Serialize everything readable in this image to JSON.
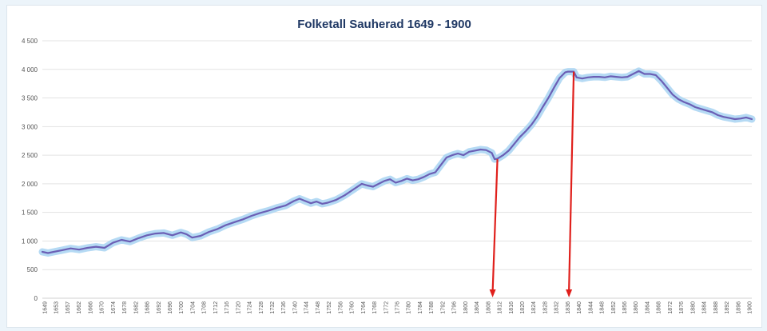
{
  "chart_data": {
    "type": "line",
    "title": "Folketall Sauherad 1649 - 1900",
    "xlabel": "",
    "ylabel": "",
    "xlim": [
      1649,
      1900
    ],
    "ylim": [
      0,
      4500
    ],
    "yticks": [
      0,
      500,
      1000,
      1500,
      2000,
      2500,
      3000,
      3500,
      4000,
      4500
    ],
    "ytick_labels": [
      "0",
      "500",
      "1 000",
      "1 500",
      "2 000",
      "2 500",
      "3 000",
      "3 500",
      "4 000",
      "4 500"
    ],
    "xtick_labels": [
      "1649",
      "1653",
      "1657",
      "1662",
      "1666",
      "1670",
      "1674",
      "1678",
      "1682",
      "1686",
      "1692",
      "1696",
      "1700",
      "1704",
      "1708",
      "1712",
      "1716",
      "1720",
      "1724",
      "1728",
      "1732",
      "1736",
      "1740",
      "1744",
      "1748",
      "1752",
      "1756",
      "1760",
      "1764",
      "1768",
      "1772",
      "1776",
      "1780",
      "1784",
      "1788",
      "1792",
      "1796",
      "1800",
      "1804",
      "1808",
      "1812",
      "1816",
      "1820",
      "1824",
      "1828",
      "1832",
      "1836",
      "1840",
      "1844",
      "1848",
      "1852",
      "1856",
      "1860",
      "1864",
      "1868",
      "1872",
      "1876",
      "1880",
      "1884",
      "1888",
      "1892",
      "1896",
      "1900"
    ],
    "grid": true,
    "line_color": "#6b5fb5",
    "glow_color": "#a8d4f2",
    "arrow_color": "#e0201c",
    "series": [
      {
        "x": [
          1649,
          1651,
          1653,
          1656,
          1659,
          1662,
          1665,
          1668,
          1671,
          1674,
          1677,
          1680,
          1683,
          1686,
          1689,
          1692,
          1695,
          1698,
          1700,
          1702,
          1705,
          1708,
          1711,
          1714,
          1717,
          1720,
          1723,
          1726,
          1729,
          1732,
          1735,
          1738,
          1740,
          1742,
          1744,
          1746,
          1748,
          1750,
          1753,
          1756,
          1759,
          1762,
          1764,
          1766,
          1768,
          1770,
          1772,
          1774,
          1776,
          1778,
          1780,
          1782,
          1784,
          1786,
          1788,
          1790,
          1792,
          1794,
          1796,
          1798,
          1800,
          1802,
          1804,
          1806,
          1808,
          1809,
          1810,
          1812,
          1814,
          1816,
          1818,
          1820,
          1822,
          1824,
          1826,
          1828,
          1830,
          1832,
          1834,
          1835,
          1837,
          1838,
          1840,
          1842,
          1844,
          1846,
          1848,
          1850,
          1852,
          1854,
          1856,
          1858,
          1860,
          1862,
          1864,
          1866,
          1868,
          1870,
          1872,
          1874,
          1876,
          1878,
          1880,
          1882,
          1884,
          1886,
          1888,
          1890,
          1892,
          1894,
          1896,
          1898,
          1900
        ],
        "values": [
          810,
          790,
          810,
          840,
          870,
          850,
          880,
          900,
          880,
          970,
          1020,
          990,
          1050,
          1100,
          1130,
          1140,
          1100,
          1150,
          1120,
          1060,
          1090,
          1160,
          1210,
          1280,
          1330,
          1380,
          1440,
          1490,
          1530,
          1580,
          1620,
          1700,
          1740,
          1700,
          1660,
          1690,
          1650,
          1670,
          1720,
          1800,
          1900,
          2000,
          1970,
          1950,
          2000,
          2050,
          2080,
          2020,
          2050,
          2090,
          2060,
          2080,
          2120,
          2170,
          2200,
          2330,
          2460,
          2500,
          2530,
          2500,
          2560,
          2580,
          2600,
          2590,
          2540,
          2430,
          2440,
          2500,
          2580,
          2700,
          2820,
          2920,
          3030,
          3170,
          3340,
          3500,
          3680,
          3850,
          3950,
          3960,
          3960,
          3860,
          3840,
          3860,
          3870,
          3870,
          3860,
          3880,
          3870,
          3860,
          3870,
          3920,
          3970,
          3920,
          3920,
          3900,
          3800,
          3680,
          3560,
          3480,
          3430,
          3390,
          3340,
          3310,
          3280,
          3250,
          3200,
          3170,
          3150,
          3130,
          3140,
          3160,
          3130
        ]
      }
    ],
    "arrows": [
      {
        "x": 1810,
        "y": 2430
      },
      {
        "x": 1837,
        "y": 3960
      }
    ]
  }
}
